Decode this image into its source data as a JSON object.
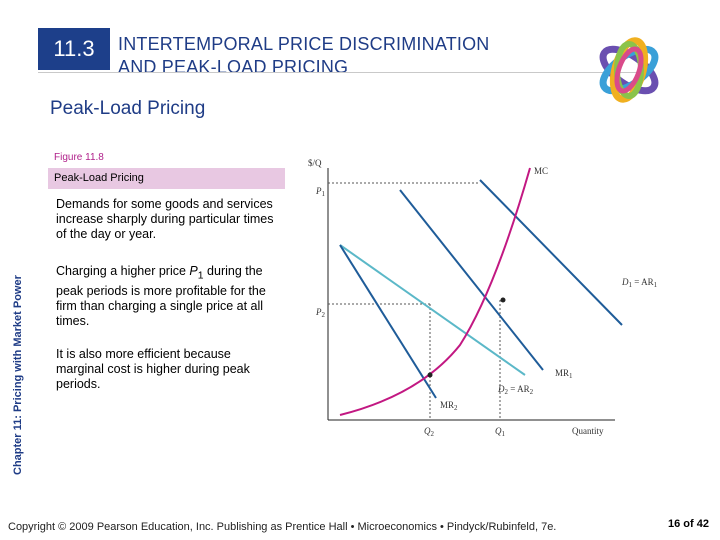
{
  "header": {
    "section_number": "11.3",
    "title_line1": "INTERTEMPORAL PRICE DISCRIMINATION",
    "title_line2": "AND PEAK-LOAD PRICING"
  },
  "subtitle": "Peak-Load Pricing",
  "side_label": "Chapter 11: Pricing with Market Power",
  "figure": {
    "label": "Figure 11.8",
    "caption_title": "Peak-Load Pricing",
    "paragraphs": [
      "Demands for some goods and services increase sharply during particular times of the day or year.",
      "Charging a higher price P1 during the peak periods is more profitable for the firm than charging a single price at all times.",
      "It is also more efficient because marginal cost is higher during peak periods."
    ],
    "p2_prefix": "Charging a higher price ",
    "p2_var": "P",
    "p2_sub": "1",
    "p2_suffix": " during the peak periods is more profitable for the firm than charging a single price at all times."
  },
  "diagram": {
    "y_axis_label": "$/Q",
    "x_axis_label": "Quantity",
    "mc_label": "MC",
    "p1_label": "P",
    "p1_sub": "1",
    "p2_label": "P",
    "p2_sub": "2",
    "d1_label": "D",
    "d1_sub": "1",
    "d1_rest": " = AR",
    "d1_rest_sub": "1",
    "d2_label": "D",
    "d2_sub": "2",
    "d2_rest": " = AR",
    "d2_rest_sub": "2",
    "mr1_label": "MR",
    "mr1_sub": "1",
    "mr2_label": "MR",
    "mr2_sub": "2",
    "q1_label": "Q",
    "q1_sub": "1",
    "q2_label": "Q",
    "q2_sub": "2",
    "colors": {
      "demand": "#1f5c99",
      "mr": "#1f5c99",
      "low_demand": "#5bb8c8",
      "mc": "#c21882"
    }
  },
  "footer": {
    "copyright": "Copyright © 2009 Pearson Education, Inc. Publishing as Prentice Hall • Microeconomics • Pindyck/Rubinfeld, 7e.",
    "page": "16 of 42"
  }
}
